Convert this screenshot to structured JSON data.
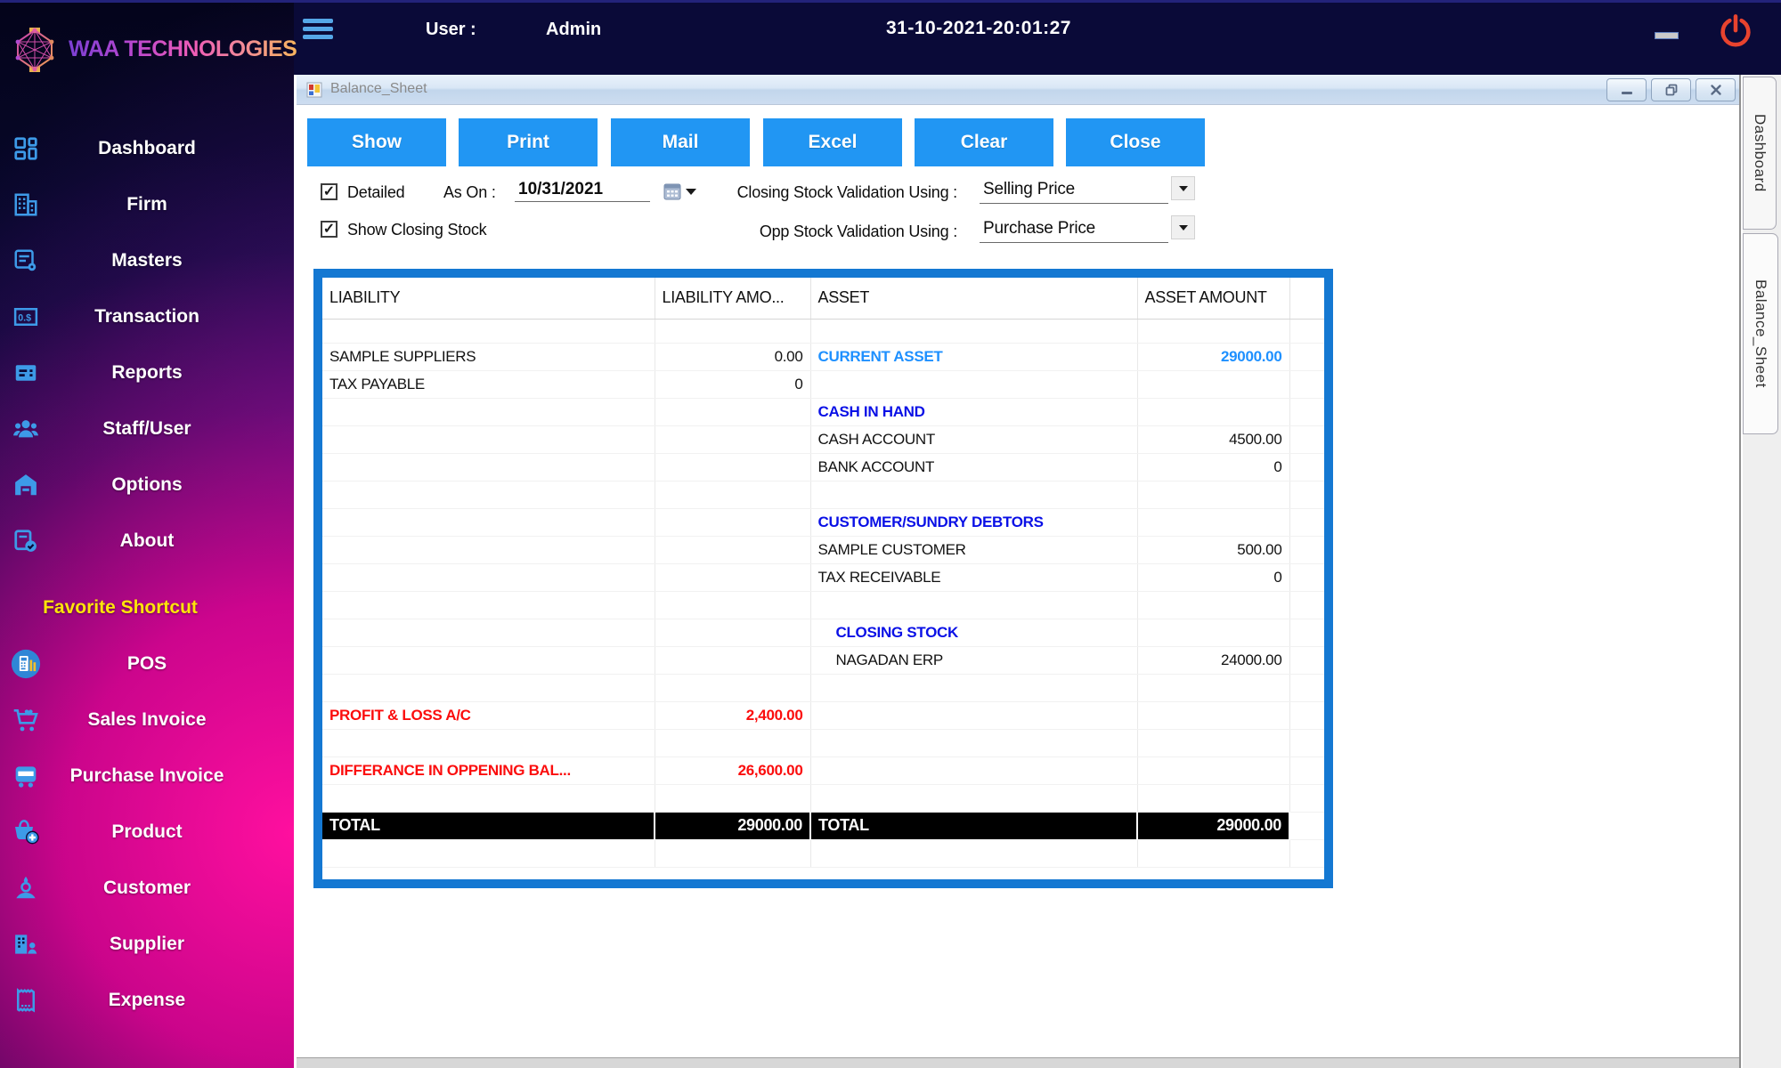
{
  "brand": {
    "name": "WAA TECHNOLOGIES"
  },
  "topbar": {
    "user_label": "User :",
    "user_value": "Admin",
    "datetime": "31-10-2021-20:01:27"
  },
  "sidebar": {
    "items": [
      {
        "label": "Dashboard",
        "icon": "dashboard-icon"
      },
      {
        "label": "Firm",
        "icon": "firm-icon"
      },
      {
        "label": "Masters",
        "icon": "masters-icon"
      },
      {
        "label": "Transaction",
        "icon": "transaction-icon"
      },
      {
        "label": "Reports",
        "icon": "reports-icon"
      },
      {
        "label": "Staff/User",
        "icon": "staff-user-icon"
      },
      {
        "label": "Options",
        "icon": "options-icon"
      },
      {
        "label": "About",
        "icon": "about-icon"
      }
    ],
    "section_label": "Favorite Shortcut",
    "shortcuts": [
      {
        "label": "POS",
        "icon": "pos-icon"
      },
      {
        "label": "Sales Invoice",
        "icon": "sales-invoice-icon"
      },
      {
        "label": "Purchase Invoice",
        "icon": "purchase-invoice-icon"
      },
      {
        "label": "Product",
        "icon": "product-icon"
      },
      {
        "label": "Customer",
        "icon": "customer-icon"
      },
      {
        "label": "Supplier",
        "icon": "supplier-icon"
      },
      {
        "label": "Expense",
        "icon": "expense-icon"
      }
    ]
  },
  "window": {
    "title": "Balance_Sheet",
    "toolbar": [
      "Show",
      "Print",
      "Mail",
      "Excel",
      "Clear",
      "Close"
    ],
    "filters": {
      "detailed": {
        "label": "Detailed",
        "checked": true
      },
      "show_closing_stock": {
        "label": "Show Closing Stock",
        "checked": true
      },
      "as_on_label": "As On :",
      "as_on_value": "10/31/2021",
      "closing_validation_label": "Closing Stock Validation Using :",
      "closing_validation_value": "Selling Price",
      "opp_validation_label": "Opp Stock Validation Using :",
      "opp_validation_value": "Purchase Price"
    },
    "grid": {
      "columns": [
        "LIABILITY",
        "LIABILITY AMO...",
        "ASSET",
        "ASSET AMOUNT"
      ],
      "rows": [
        {
          "kind": "spacer"
        },
        {
          "l": "SAMPLE SUPPLIERS",
          "la": "0.00",
          "a": "CURRENT ASSET",
          "aa": "29000.00",
          "a_kind": "primary"
        },
        {
          "l": "TAX PAYABLE",
          "la": "0"
        },
        {
          "a": "CASH IN HAND",
          "a_kind": "section"
        },
        {
          "a": "CASH ACCOUNT",
          "aa": "4500.00"
        },
        {
          "a": "BANK ACCOUNT",
          "aa": "0"
        },
        {},
        {
          "a": "CUSTOMER/SUNDRY DEBTORS",
          "a_kind": "section"
        },
        {
          "a": "SAMPLE CUSTOMER",
          "aa": "500.00"
        },
        {
          "a": "TAX RECEIVABLE",
          "aa": "0"
        },
        {},
        {
          "a": "CLOSING STOCK",
          "a_kind": "section",
          "a_indent": true
        },
        {
          "a": "NAGADAN ERP",
          "aa": "24000.00",
          "a_indent": true
        },
        {},
        {
          "l": "PROFIT & LOSS A/C",
          "la": "2,400.00",
          "l_kind": "alert"
        },
        {},
        {
          "l": "DIFFERANCE IN OPPENING BAL...",
          "la": "26,600.00",
          "l_kind": "alert"
        },
        {},
        {
          "kind": "total",
          "l": "TOTAL",
          "la": "29000.00",
          "a": "TOTAL",
          "aa": "29000.00"
        },
        {}
      ]
    },
    "side_tabs": [
      "Dashboard",
      "Balance_Sheet"
    ]
  },
  "colors": {
    "toolbar_button": "#2196f3",
    "grid_border": "#1478d2",
    "section_text": "#0a10e6",
    "primary_text": "#1e90ff",
    "alert_text": "#fb0d0d",
    "favorite_label": "#ffe40a",
    "sidebar_icon": "#3d9ae8",
    "power_icon": "#e8432e",
    "topbar_bg": "#0a0a38"
  }
}
